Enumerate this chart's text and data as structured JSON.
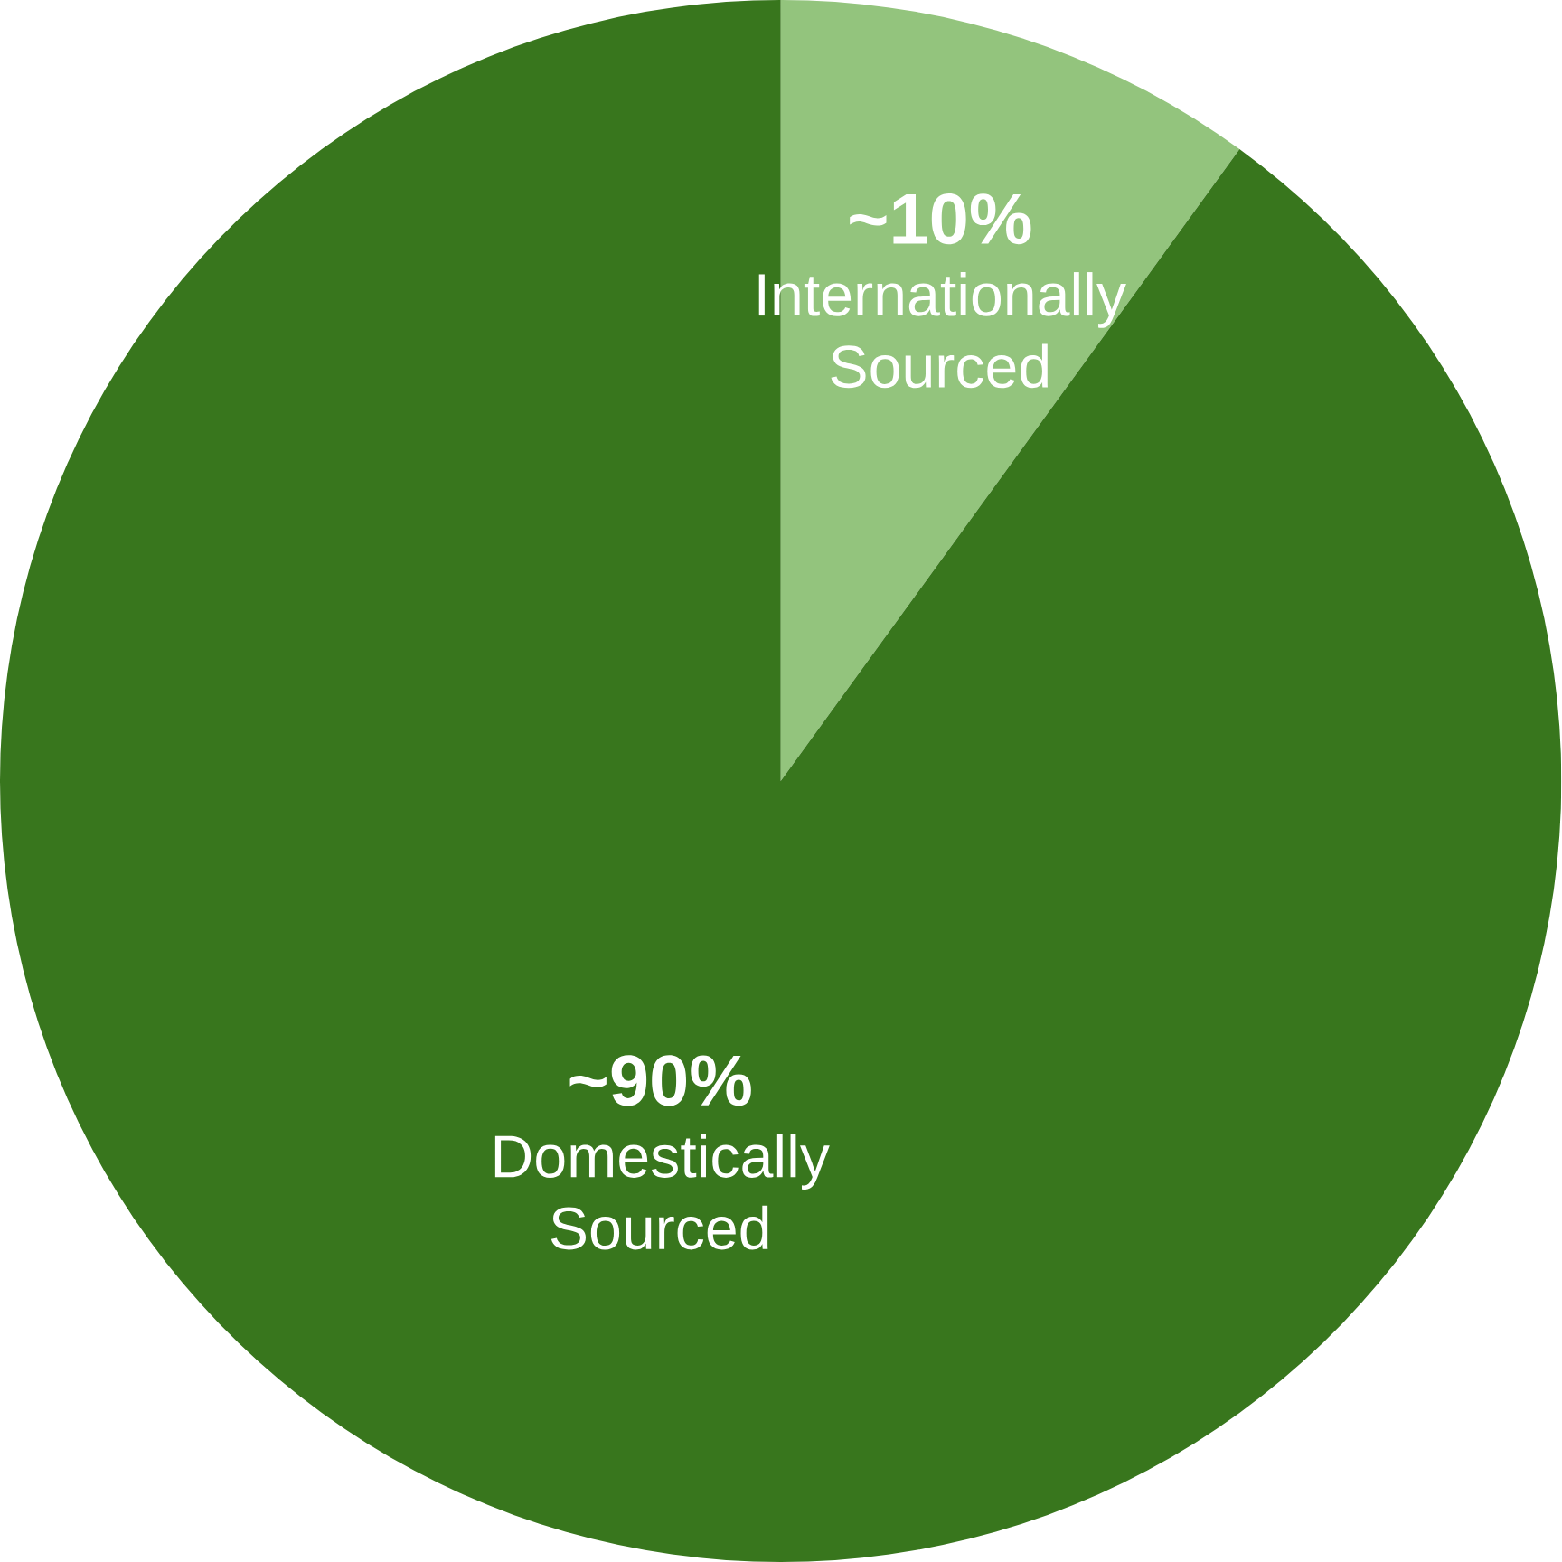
{
  "chart_data": {
    "type": "pie",
    "categories": [
      "Internationally Sourced",
      "Domestically Sourced"
    ],
    "values": [
      10,
      90
    ],
    "colors": [
      "#93c47d",
      "#38761d"
    ],
    "value_labels": [
      "~10%",
      "~90%"
    ]
  }
}
